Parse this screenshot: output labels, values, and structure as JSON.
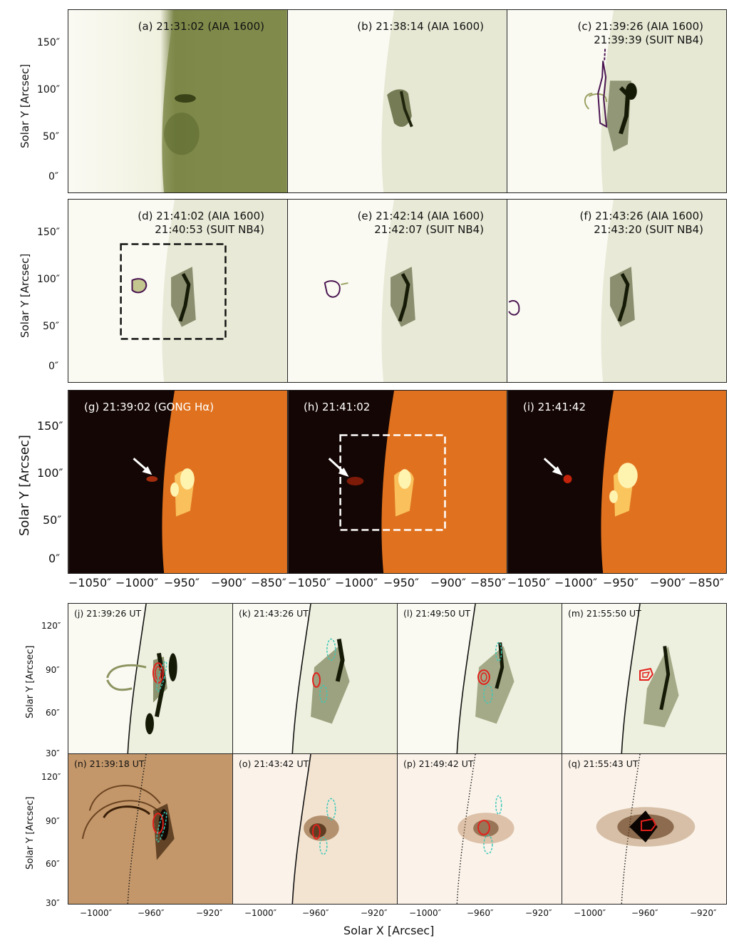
{
  "top_rows": {
    "y_axis_label": "Solar Y [Arcsec]",
    "y_ticks": [
      "150″",
      "100″",
      "50″",
      "0″"
    ],
    "x_ticks": [
      "−1050″",
      "−1000″",
      "−950″",
      "−900″",
      "−850″"
    ],
    "panels": [
      {
        "id": "a",
        "label": "(a) 21:31:02 (AIA 1600)",
        "colormap": "aia1600"
      },
      {
        "id": "b",
        "label": "(b) 21:38:14 (AIA 1600)",
        "colormap": "aia1600"
      },
      {
        "id": "c",
        "label": "(c) 21:39:26 (AIA 1600)\n21:39:39 (SUIT NB4)",
        "colormap": "aia1600"
      },
      {
        "id": "d",
        "label": "(d) 21:41:02 (AIA 1600)\n21:40:53 (SUIT NB4)",
        "colormap": "aia1600"
      },
      {
        "id": "e",
        "label": "(e) 21:42:14 (AIA 1600)\n21:42:07 (SUIT NB4)",
        "colormap": "aia1600"
      },
      {
        "id": "f",
        "label": "(f) 21:43:26 (AIA 1600)\n21:43:20 (SUIT NB4)",
        "colormap": "aia1600"
      },
      {
        "id": "g",
        "label": "(g) 21:39:02 (GONG Hα)",
        "colormap": "halpha"
      },
      {
        "id": "h",
        "label": "(h) 21:41:02",
        "colormap": "halpha"
      },
      {
        "id": "i",
        "label": "(i) 21:41:42",
        "colormap": "halpha"
      }
    ]
  },
  "bottom_rows": {
    "y_axis_label": "Solar Y [Arcsec]",
    "x_axis_label": "Solar X [Arcsec]",
    "y_ticks": [
      "120″",
      "90″",
      "60″",
      "30″"
    ],
    "x_ticks": [
      "−1000″",
      "−960″",
      "−920″"
    ],
    "panels": [
      {
        "id": "j",
        "label": "(j) 21:39:26 UT"
      },
      {
        "id": "k",
        "label": "(k) 21:43:26 UT"
      },
      {
        "id": "l",
        "label": "(l) 21:49:50 UT"
      },
      {
        "id": "m",
        "label": "(m) 21:55:50 UT"
      },
      {
        "id": "n",
        "label": "(n) 21:39:18 UT"
      },
      {
        "id": "o",
        "label": "(o) 21:43:42 UT"
      },
      {
        "id": "p",
        "label": "(p) 21:49:42 UT"
      },
      {
        "id": "q",
        "label": "(q) 21:55:43 UT"
      }
    ]
  },
  "colors": {
    "aia_bg": "#fafaf3",
    "aia_dark": "#232a10",
    "aia_limb": "#7d8a4a",
    "halpha_space": "#140604",
    "halpha_disk": "#e0721f",
    "halpha_bright": "#fff3b0",
    "euv_bg": "#f9eee2",
    "euv_dark": "#3a1f08",
    "suit_contour": "#4a1550",
    "red_contour": "#e3201c",
    "cyan_contour": "#3cc8b8"
  }
}
